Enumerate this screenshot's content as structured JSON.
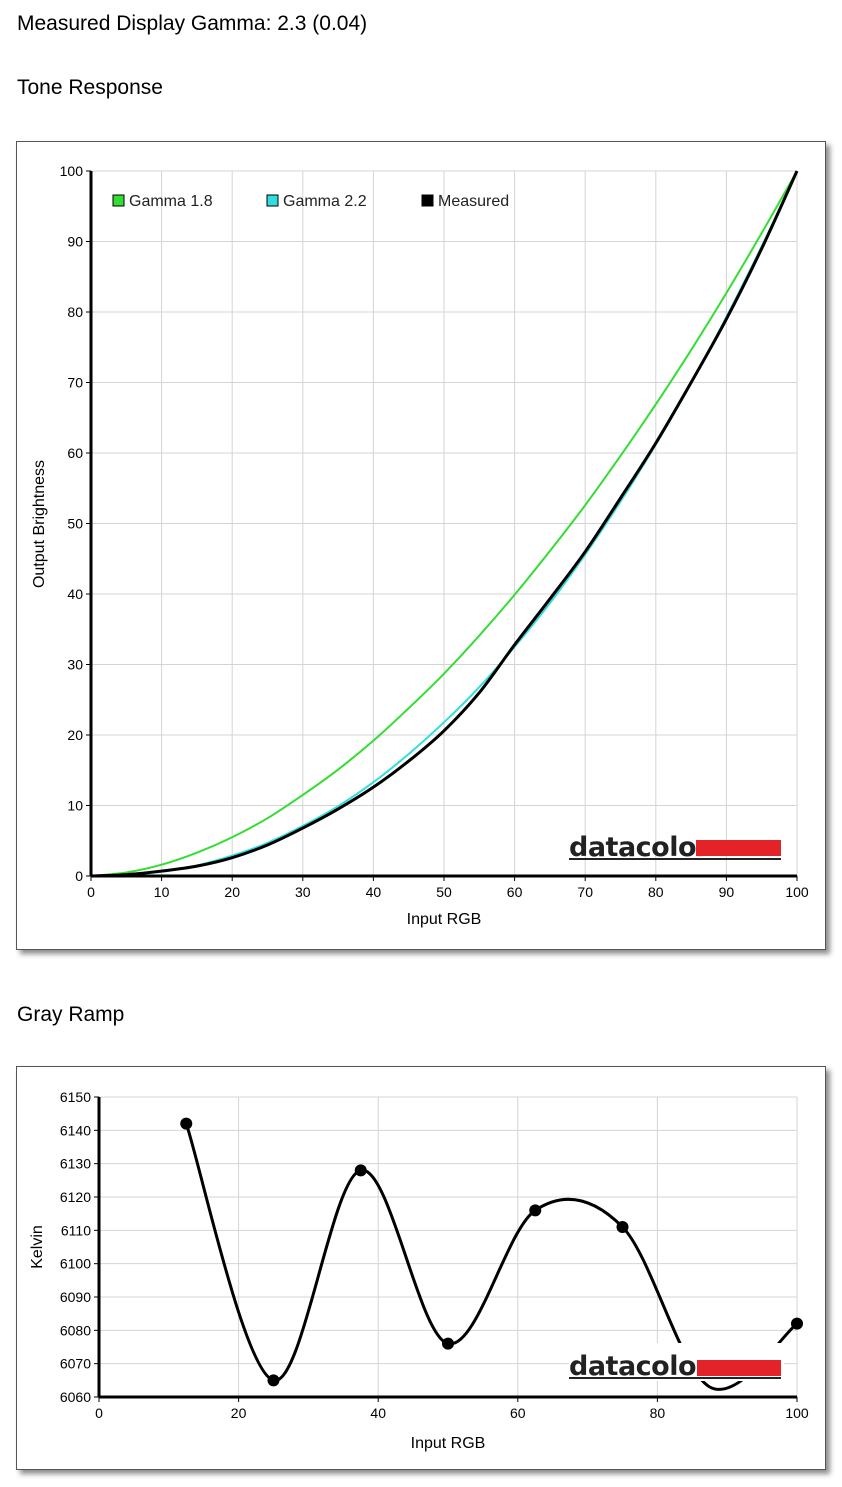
{
  "headings": {
    "measured": "Measured Display Gamma: 2.3 (0.04)",
    "tone": "Tone Response",
    "gray": "Gray Ramp"
  },
  "logo": {
    "text": "datacolor",
    "bar_color": "#e32229"
  },
  "chart_data": [
    {
      "type": "line",
      "title": "",
      "xlabel": "Input RGB",
      "ylabel": "Output Brightness",
      "xlim": [
        0,
        100
      ],
      "ylim": [
        0,
        100
      ],
      "xticks": [
        "0",
        "10",
        "20",
        "30",
        "40",
        "50",
        "60",
        "70",
        "80",
        "90",
        "100"
      ],
      "yticks": [
        "0",
        "10",
        "20",
        "30",
        "40",
        "50",
        "60",
        "70",
        "80",
        "90",
        "100"
      ],
      "grid": true,
      "legend": "top-left",
      "series": [
        {
          "name": "Gamma 1.8",
          "color": "#33dd33",
          "x": [
            0,
            5,
            10,
            15,
            20,
            25,
            30,
            35,
            40,
            45,
            50,
            55,
            60,
            65,
            70,
            75,
            80,
            85,
            90,
            95,
            100
          ],
          "y": [
            0,
            0.5,
            1.6,
            3.3,
            5.5,
            8.2,
            11.5,
            15.1,
            19.2,
            23.8,
            28.7,
            34.1,
            39.9,
            46.1,
            52.6,
            59.6,
            66.9,
            74.6,
            82.7,
            91.2,
            100
          ]
        },
        {
          "name": "Gamma 2.2",
          "color": "#33dddd",
          "x": [
            0,
            5,
            10,
            15,
            20,
            25,
            30,
            35,
            40,
            45,
            50,
            55,
            60,
            65,
            70,
            75,
            80,
            85,
            90,
            95,
            100
          ],
          "y": [
            0,
            0.1,
            0.6,
            1.5,
            2.9,
            4.7,
            7.1,
            9.9,
            13.3,
            17.3,
            21.8,
            26.8,
            32.5,
            38.7,
            45.6,
            53.1,
            61.2,
            69.9,
            79.3,
            89.3,
            100
          ]
        },
        {
          "name": "Measured",
          "color": "#000000",
          "x": [
            0,
            5,
            10,
            15,
            20,
            25,
            30,
            35,
            40,
            45,
            50,
            55,
            60,
            65,
            70,
            75,
            80,
            85,
            90,
            95,
            100
          ],
          "y": [
            0,
            0.2,
            0.7,
            1.4,
            2.6,
            4.4,
            6.8,
            9.5,
            12.6,
            16.3,
            20.6,
            26.0,
            32.8,
            39.3,
            46.0,
            53.6,
            61.4,
            70.0,
            79.0,
            89.0,
            100
          ]
        }
      ]
    },
    {
      "type": "line",
      "title": "",
      "xlabel": "Input RGB",
      "ylabel": "Kelvin",
      "xlim": [
        0,
        100
      ],
      "ylim": [
        6060,
        6150
      ],
      "xticks": [
        "0",
        "20",
        "40",
        "60",
        "80",
        "100"
      ],
      "yticks": [
        "6060",
        "6070",
        "6080",
        "6090",
        "6100",
        "6110",
        "6120",
        "6130",
        "6140",
        "6150"
      ],
      "grid": true,
      "series": [
        {
          "name": "",
          "color": "#000000",
          "x": [
            12.5,
            25,
            37.5,
            50,
            62.5,
            75,
            87.5,
            100
          ],
          "y": [
            6142,
            6065,
            6128,
            6076,
            6116,
            6111,
            6063,
            6082
          ],
          "markers": [
            true,
            true,
            true,
            true,
            true,
            true,
            false,
            true
          ]
        }
      ]
    }
  ]
}
